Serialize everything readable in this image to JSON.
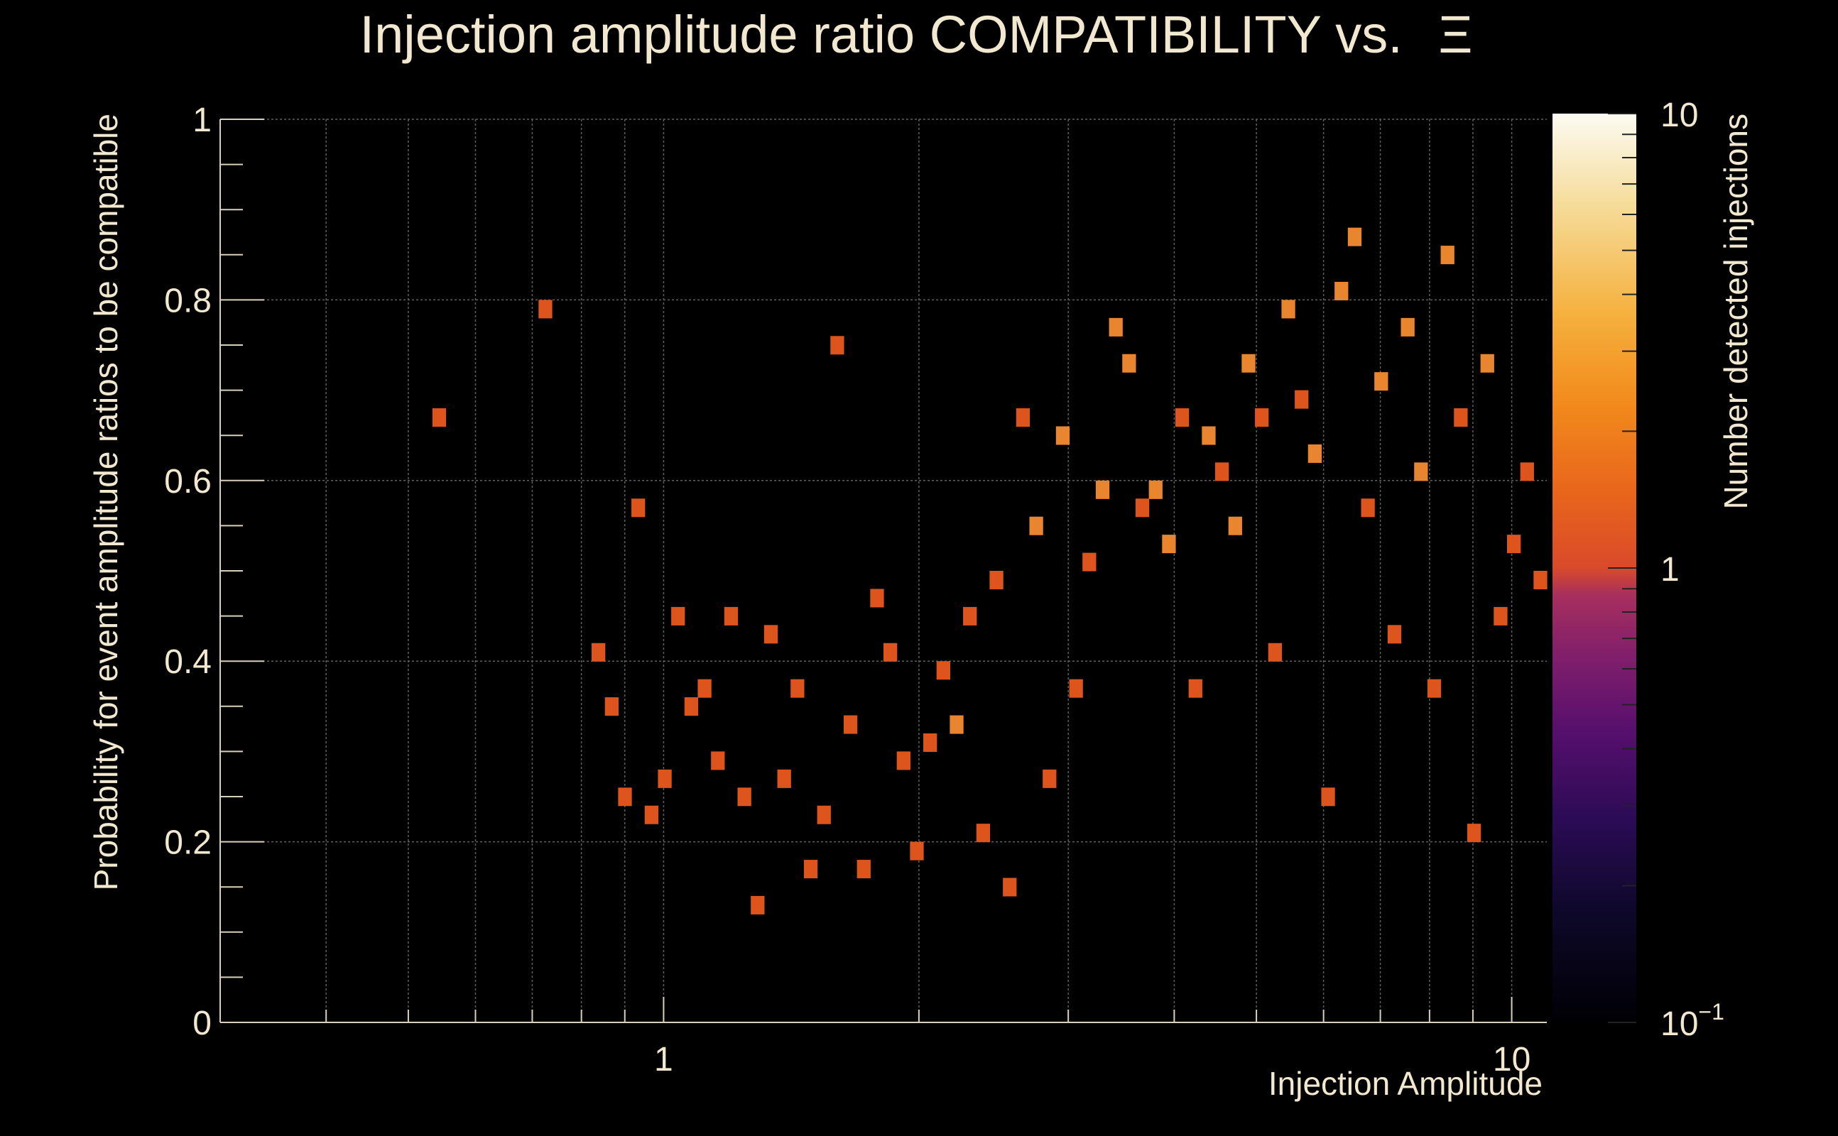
{
  "chart_data": {
    "type": "heatmap",
    "title": "Injection amplitude ratio COMPATIBILITY vs.",
    "title_symbol": "Ξ",
    "xlabel": "Injection Amplitude",
    "ylabel": "Probability for event amplitude ratios to be compatible",
    "zlabel": "Number detected injections",
    "x_scale": "log",
    "xlim": [
      0.3,
      11
    ],
    "ylim": [
      0,
      1
    ],
    "z_scale": "log",
    "zlim": [
      0.1,
      10
    ],
    "x_ticks": [
      {
        "value": 1,
        "label": "1"
      },
      {
        "value": 10,
        "label": "10"
      }
    ],
    "y_ticks": [
      {
        "value": 0,
        "label": "0"
      },
      {
        "value": 0.2,
        "label": "0.2"
      },
      {
        "value": 0.4,
        "label": "0.4"
      },
      {
        "value": 0.6,
        "label": "0.6"
      },
      {
        "value": 0.8,
        "label": "0.8"
      },
      {
        "value": 1,
        "label": "1"
      }
    ],
    "z_ticks": [
      {
        "value": 10,
        "label": "10"
      },
      {
        "value": 1,
        "label": "1"
      },
      {
        "value": 0.1,
        "label": "10",
        "exponent": "−1"
      }
    ],
    "grid": true,
    "colormap": [
      "#000000",
      "#1b0c41",
      "#4a0c6b",
      "#781c6d",
      "#a52c60",
      "#cf4446",
      "#e05a1a",
      "#ed6925",
      "#f48a14",
      "#f8b03a",
      "#f7d385",
      "#fcffee"
    ],
    "bins": {
      "nx": 100,
      "ny": 50,
      "x_log_min": -0.5229,
      "x_log_max": 1.0414
    },
    "cells": [
      [
        16,
        33,
        1
      ],
      [
        24,
        39,
        1
      ],
      [
        28,
        20,
        1
      ],
      [
        29,
        17,
        1
      ],
      [
        30,
        12,
        1
      ],
      [
        31,
        28,
        1
      ],
      [
        32,
        11,
        1
      ],
      [
        33,
        13,
        1
      ],
      [
        34,
        22,
        1
      ],
      [
        35,
        17,
        1
      ],
      [
        36,
        18,
        1
      ],
      [
        37,
        14,
        1
      ],
      [
        38,
        22,
        1
      ],
      [
        39,
        12,
        1
      ],
      [
        40,
        6,
        1
      ],
      [
        41,
        21,
        1
      ],
      [
        42,
        13,
        1
      ],
      [
        43,
        18,
        1
      ],
      [
        44,
        8,
        1
      ],
      [
        45,
        11,
        1
      ],
      [
        46,
        37,
        1
      ],
      [
        47,
        16,
        1
      ],
      [
        48,
        8,
        1
      ],
      [
        49,
        23,
        1
      ],
      [
        50,
        20,
        1
      ],
      [
        51,
        14,
        1
      ],
      [
        52,
        9,
        1
      ],
      [
        53,
        15,
        1
      ],
      [
        54,
        19,
        1
      ],
      [
        55,
        16,
        2
      ],
      [
        56,
        22,
        1
      ],
      [
        57,
        10,
        1
      ],
      [
        58,
        24,
        1
      ],
      [
        59,
        7,
        1
      ],
      [
        60,
        33,
        1
      ],
      [
        61,
        27,
        2
      ],
      [
        62,
        13,
        1
      ],
      [
        63,
        32,
        2
      ],
      [
        64,
        18,
        1
      ],
      [
        65,
        25,
        1
      ],
      [
        66,
        29,
        2
      ],
      [
        67,
        38,
        2
      ],
      [
        68,
        36,
        2
      ],
      [
        69,
        28,
        1
      ],
      [
        70,
        29,
        2
      ],
      [
        71,
        26,
        2
      ],
      [
        72,
        33,
        1
      ],
      [
        73,
        18,
        1
      ],
      [
        74,
        32,
        2
      ],
      [
        75,
        30,
        1
      ],
      [
        76,
        27,
        2
      ],
      [
        77,
        36,
        2
      ],
      [
        78,
        33,
        1
      ],
      [
        79,
        20,
        1
      ],
      [
        80,
        39,
        2
      ],
      [
        81,
        34,
        1
      ],
      [
        82,
        31,
        2
      ],
      [
        83,
        12,
        1
      ],
      [
        84,
        40,
        2
      ],
      [
        85,
        43,
        2
      ],
      [
        86,
        28,
        1
      ],
      [
        87,
        35,
        2
      ],
      [
        88,
        21,
        1
      ],
      [
        89,
        38,
        2
      ],
      [
        90,
        30,
        2
      ],
      [
        91,
        18,
        1
      ],
      [
        92,
        42,
        2
      ],
      [
        93,
        33,
        1
      ],
      [
        94,
        10,
        1
      ],
      [
        95,
        36,
        2
      ],
      [
        96,
        22,
        1
      ],
      [
        97,
        26,
        1
      ],
      [
        98,
        30,
        1
      ],
      [
        99,
        24,
        1
      ]
    ]
  }
}
